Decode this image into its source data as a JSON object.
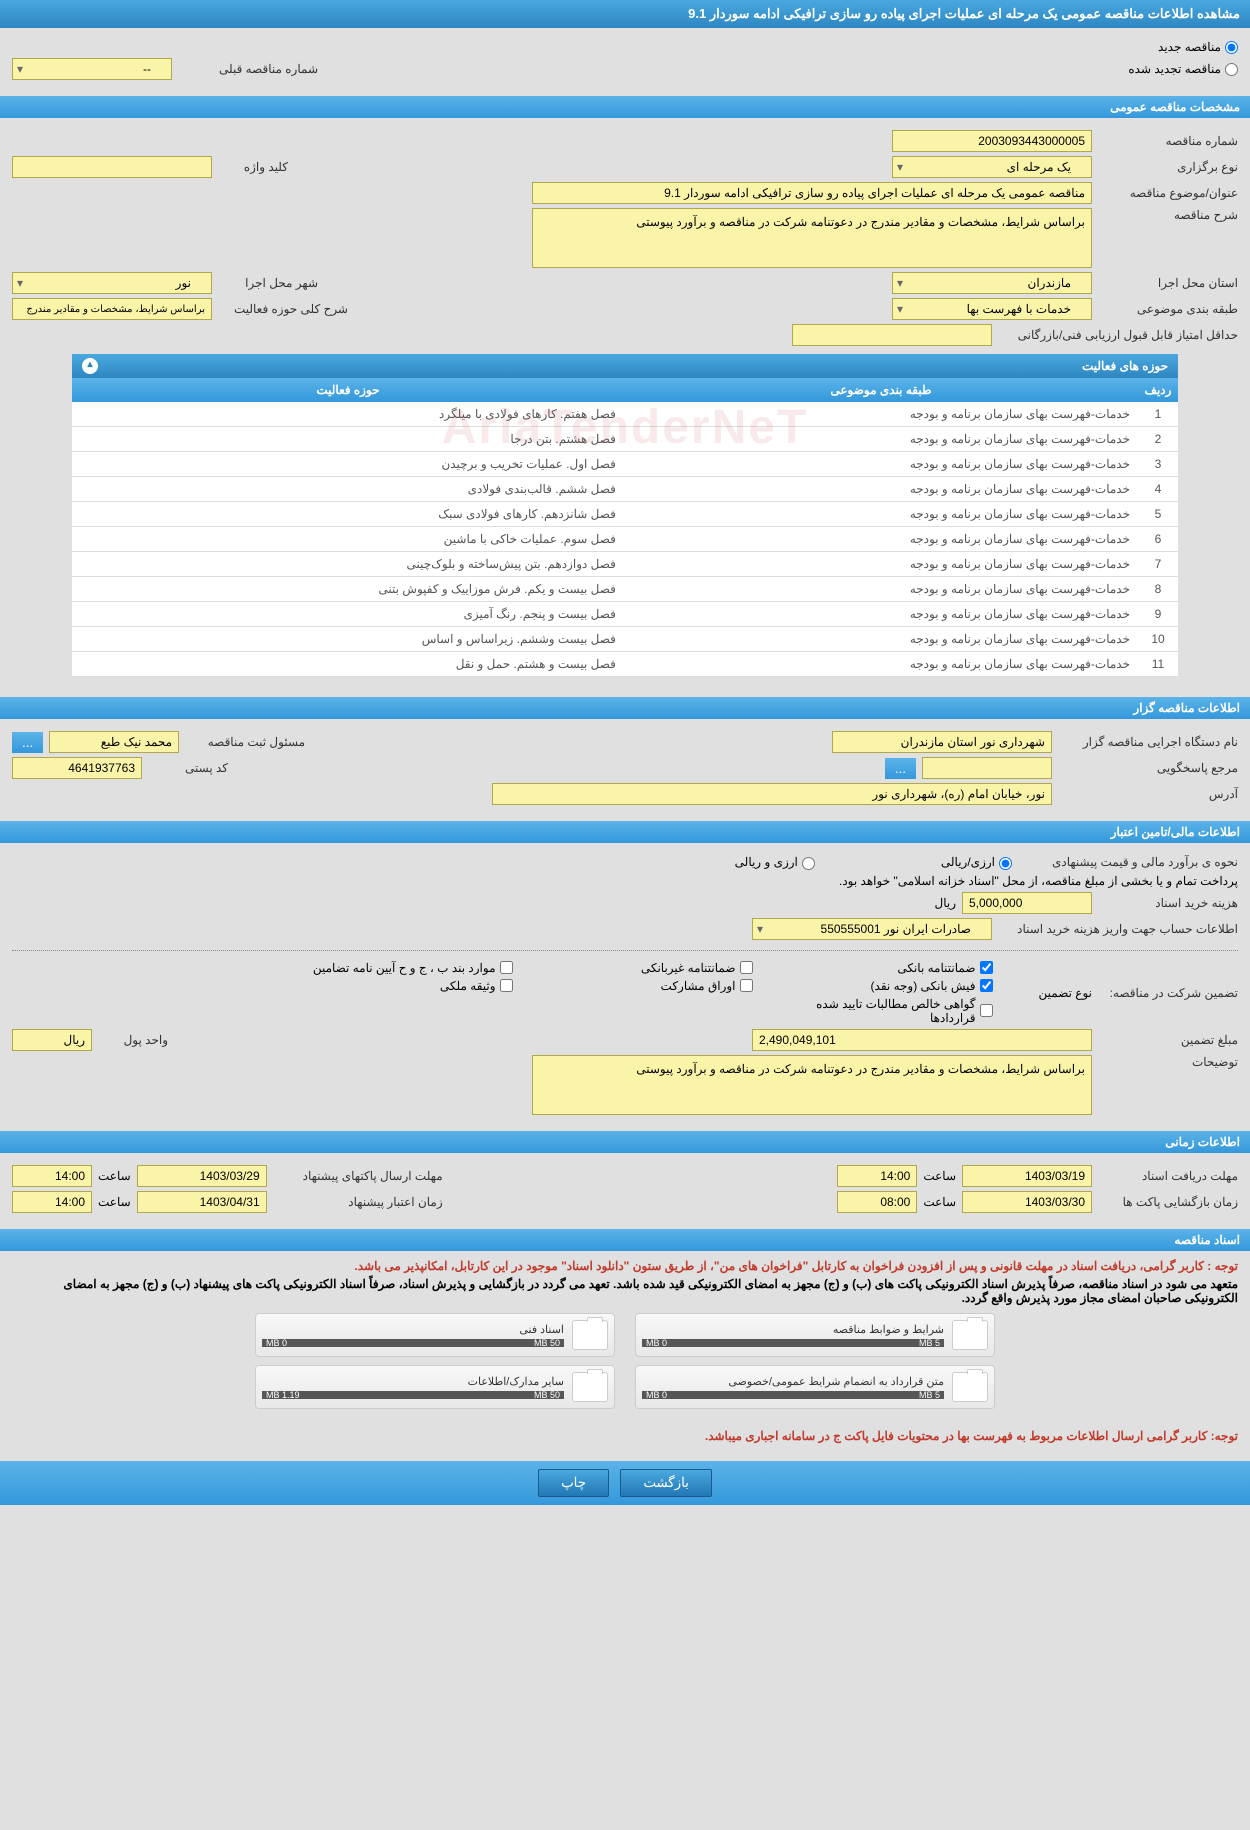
{
  "page_title": "مشاهده اطلاعات مناقصه عمومی یک مرحله ای عملیات اجرای پیاده رو سازی ترافیکی ادامه سوردار 9.1",
  "radios": {
    "new_tender": "مناقصه جدید",
    "renewed_tender": "مناقصه تجدید شده",
    "prev_number_label": "شماره مناقصه قبلی",
    "prev_number_value": "--"
  },
  "sections": {
    "general": "مشخصات مناقصه عمومی",
    "organizer": "اطلاعات مناقصه گزار",
    "financial": "اطلاعات مالی/تامین اعتبار",
    "timing": "اطلاعات زمانی",
    "docs": "اسناد مناقصه"
  },
  "general": {
    "tender_no_lbl": "شماره مناقصه",
    "tender_no": "2003093443000005",
    "hold_type_lbl": "نوع برگزاری",
    "hold_type": "یک مرحله ای",
    "keyword_lbl": "کلید واژه",
    "keyword": "",
    "subject_lbl": "عنوان/موضوع مناقصه",
    "subject": "مناقصه عمومی یک مرحله ای عملیات اجرای پیاده رو سازی ترافیکی ادامه سوردار 9.1",
    "desc_lbl": "شرح مناقصه",
    "desc": "براساس شرایط، مشخصات و مقادیر مندرج در دعوتنامه شرکت در مناقصه و برآورد پیوستی",
    "province_lbl": "استان محل اجرا",
    "province": "مازندران",
    "city_lbl": "شهر محل اجرا",
    "city": "نور",
    "class_lbl": "طبقه بندی موضوعی",
    "class": "خدمات با فهرست بها",
    "activity_scope_lbl": "شرح کلی حوزه فعالیت",
    "activity_scope": "براساس شرایط، مشخصات و مقادیر مندرج",
    "min_score_lbl": "حداقل امتیاز قابل قبول ارزیابی فنی/بازرگانی",
    "min_score": ""
  },
  "activity_table": {
    "title": "حوزه های فعالیت",
    "cols": {
      "idx": "ردیف",
      "class": "طبقه بندی موضوعی",
      "scope": "حوزه فعالیت"
    },
    "rows": [
      {
        "i": "1",
        "c": "خدمات-فهرست بهای سازمان برنامه و بودجه",
        "s": "فصل هفتم. کارهای فولادی با میلگرد"
      },
      {
        "i": "2",
        "c": "خدمات-فهرست بهای سازمان برنامه و بودجه",
        "s": "فصل هشتم. بتن درجا"
      },
      {
        "i": "3",
        "c": "خدمات-فهرست بهای سازمان برنامه و بودجه",
        "s": "فصل اول. عملیات تخریب و برچیدن"
      },
      {
        "i": "4",
        "c": "خدمات-فهرست بهای سازمان برنامه و بودجه",
        "s": "فصل ششم. قالب‌بندی فولادی"
      },
      {
        "i": "5",
        "c": "خدمات-فهرست بهای سازمان برنامه و بودجه",
        "s": "فصل شانزدهم. کارهای فولادی سبک"
      },
      {
        "i": "6",
        "c": "خدمات-فهرست بهای سازمان برنامه و بودجه",
        "s": "فصل سوم. عملیات خاکی با ماشین"
      },
      {
        "i": "7",
        "c": "خدمات-فهرست بهای سازمان برنامه و بودجه",
        "s": "فصل دوازدهم. بتن پیش‌ساخته و بلوک‌چینی"
      },
      {
        "i": "8",
        "c": "خدمات-فهرست بهای سازمان برنامه و بودجه",
        "s": "فصل بیست و یکم. فرش موزاییک و کفپوش بتنی"
      },
      {
        "i": "9",
        "c": "خدمات-فهرست بهای سازمان برنامه و بودجه",
        "s": "فصل بیست و پنجم. رنگ آمیزی"
      },
      {
        "i": "10",
        "c": "خدمات-فهرست بهای سازمان برنامه و بودجه",
        "s": "فصل بیست وششم. زیراساس و اساس"
      },
      {
        "i": "11",
        "c": "خدمات-فهرست بهای سازمان برنامه و بودجه",
        "s": "فصل بیست و هشتم. حمل و نقل"
      }
    ]
  },
  "organizer": {
    "exec_lbl": "نام دستگاه اجرایی مناقصه گزار",
    "exec": "شهرداری نور استان مازندران",
    "registrar_lbl": "مسئول ثبت مناقصه",
    "registrar": "محمد نیک طبع",
    "response_lbl": "مرجع پاسخگویی",
    "response": "",
    "postal_lbl": "کد پستی",
    "postal": "4641937763",
    "address_lbl": "آدرس",
    "address": "نور، خیابان امام (ره)، شهرداری نور"
  },
  "financial": {
    "estimate_lbl": "نحوه ی برآورد مالی و قیمت پیشنهادی",
    "opt_currency": "ارزی/ریالی",
    "opt_both": "ارزی و ریالی",
    "payment_note": "پرداخت تمام و یا بخشی از مبلغ مناقصه، از محل \"اسناد خزانه اسلامی\" خواهد بود.",
    "doc_cost_lbl": "هزینه خرید اسناد",
    "doc_cost": "5,000,000",
    "rial": "ریال",
    "account_lbl": "اطلاعات حساب جهت واریز هزینه خرید اسناد",
    "account": "صادرات ایران نور 550555001",
    "guarantee_lbl": "تضمین شرکت در مناقصه:",
    "guarantee_type_lbl": "نوع تضمین",
    "chk1": "ضمانتنامه بانکی",
    "chk2": "ضمانتنامه غیربانکی",
    "chk3": "موارد بند ب ، ج و ح آیین نامه تضامین",
    "chk4": "فیش بانکی (وجه نقد)",
    "chk5": "اوراق مشارکت",
    "chk6": "وثیقه ملکی",
    "chk7": "گواهی خالص مطالبات تایید شده قراردادها",
    "guarantee_amt_lbl": "مبلغ تضمین",
    "guarantee_amt": "2,490,049,101",
    "unit_lbl": "واحد پول",
    "unit": "ریال",
    "notes_lbl": "توضیحات",
    "notes": "براساس شرایط، مشخصات و مقادیر مندرج در دعوتنامه شرکت در مناقصه و برآورد پیوستی"
  },
  "timing": {
    "receive_deadline_lbl": "مهلت دریافت اسناد",
    "receive_deadline_date": "1403/03/19",
    "time_lbl": "ساعت",
    "receive_deadline_time": "14:00",
    "send_deadline_lbl": "مهلت ارسال پاکتهای پیشنهاد",
    "send_deadline_date": "1403/03/29",
    "send_deadline_time": "14:00",
    "open_time_lbl": "زمان بازگشایی پاکت ها",
    "open_date": "1403/03/30",
    "open_time": "08:00",
    "validity_lbl": "زمان اعتبار پیشنهاد",
    "validity_date": "1403/04/31",
    "validity_time": "14:00"
  },
  "docs": {
    "warn1": "توجه : کاربر گرامی، دریافت اسناد در مهلت قانونی و پس از افزودن فراخوان به کارتابل \"فراخوان های من\"، از طریق ستون \"دانلود اسناد\" موجود در این کارتابل، امکانپذیر می باشد.",
    "warn2": "متعهد می شود در اسناد مناقصه، صرفاً پذیرش اسناد الکترونیکی پاکت های (ب) و (ج) مجهز به امضای الکترونیکی قید شده باشد. تعهد می گردد در بازگشایی و پذیرش اسناد، صرفاً اسناد الکترونیکی پاکت های پیشنهاد (ب) و (ج) مجهز به امضای الکترونیکی صاحبان امضای مجاز مورد پذیرش واقع گردد.",
    "warn3": "توجه: کاربر گرامی ارسال اطلاعات مربوط به فهرست بها در محتویات فایل پاکت ج در سامانه اجباری میباشد.",
    "box1_title": "شرایط و ضوابط مناقصه",
    "box1_used": "0 MB",
    "box1_cap": "5 MB",
    "box2_title": "اسناد فنی",
    "box2_used": "0 MB",
    "box2_cap": "50 MB",
    "box3_title": "متن قرارداد به انضمام شرایط عمومی/خصوصی",
    "box3_used": "0 MB",
    "box3_cap": "5 MB",
    "box4_title": "سایر مدارک/اطلاعات",
    "box4_used": "1.19 MB",
    "box4_cap": "50 MB"
  },
  "buttons": {
    "back": "بازگشت",
    "print": "چاپ"
  },
  "watermark": "AriaTenderNeT"
}
